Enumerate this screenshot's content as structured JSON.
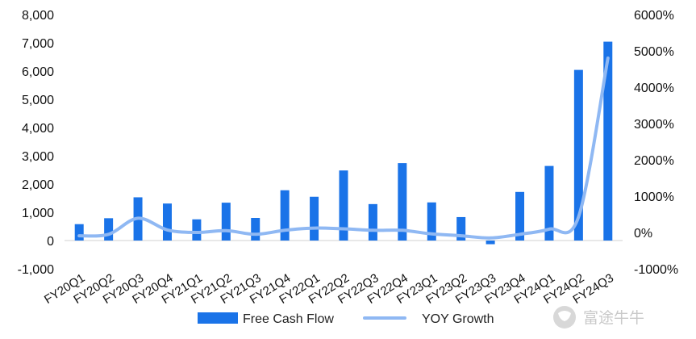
{
  "chart_data": {
    "type": "bar",
    "categories": [
      "FY20Q1",
      "FY20Q2",
      "FY20Q3",
      "FY20Q4",
      "FY21Q1",
      "FY21Q2",
      "FY21Q3",
      "FY21Q4",
      "FY22Q1",
      "FY22Q2",
      "FY22Q3",
      "FY22Q4",
      "FY23Q1",
      "FY23Q2",
      "FY23Q3",
      "FY23Q4",
      "FY24Q1",
      "FY24Q2",
      "FY24Q3"
    ],
    "series": [
      {
        "name": "Free Cash Flow",
        "type": "bar",
        "axis": "left",
        "color": "#1a73e8",
        "values": [
          580,
          790,
          1530,
          1310,
          750,
          1340,
          800,
          1780,
          1550,
          2480,
          1290,
          2740,
          1350,
          830,
          -130,
          1720,
          2640,
          6040,
          7040
        ]
      },
      {
        "name": "YOY Growth",
        "type": "line",
        "axis": "right",
        "color": "#8fb8f3",
        "values": [
          -90,
          -50,
          390,
          70,
          0,
          50,
          -50,
          60,
          120,
          100,
          60,
          60,
          -40,
          -90,
          -150,
          -50,
          90,
          430,
          4800
        ]
      }
    ],
    "left_axis": {
      "ylim": [
        -1000,
        8000
      ],
      "ticks": [
        "-1,000",
        "0",
        "1,000",
        "2,000",
        "3,000",
        "4,000",
        "5,000",
        "6,000",
        "7,000",
        "8,000"
      ]
    },
    "right_axis": {
      "ylim": [
        -1000,
        6000
      ],
      "ticks": [
        "-1000%",
        "0%",
        "1000%",
        "2000%",
        "3000%",
        "4000%",
        "5000%",
        "6000%"
      ]
    },
    "legend": {
      "position": "bottom",
      "items": [
        "Free Cash Flow",
        "YOY Growth"
      ]
    },
    "grid": false
  },
  "watermark": {
    "text": "富途牛牛",
    "icon": "futu-bull-logo-icon"
  }
}
